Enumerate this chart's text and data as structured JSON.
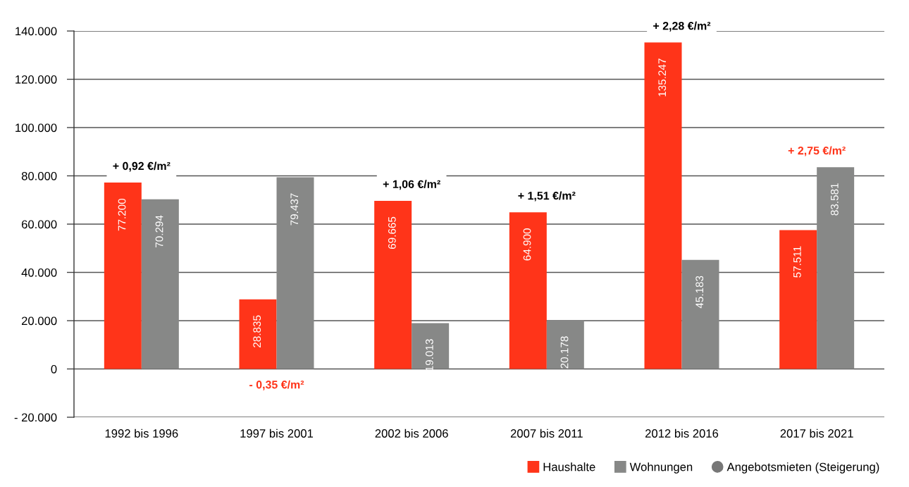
{
  "chart_data": {
    "type": "bar",
    "categories": [
      "1992 bis 1996",
      "1997 bis 2001",
      "2002 bis 2006",
      "2007 bis 2011",
      "2012 bis 2016",
      "2017 bis 2021"
    ],
    "series": [
      {
        "name": "Haushalte",
        "color": "#ff3419",
        "values": [
          77200,
          28835,
          69665,
          64900,
          135247,
          57511
        ],
        "value_labels": [
          "77.200",
          "28.835",
          "69.665",
          "64.900",
          "135.247",
          "57.511"
        ]
      },
      {
        "name": "Wohnungen",
        "color": "#878887",
        "values": [
          70294,
          79437,
          19013,
          20178,
          45183,
          83581
        ],
        "value_labels": [
          "70.294",
          "79.437",
          "19.013",
          "20.178",
          "45.183",
          "83.581"
        ]
      },
      {
        "name": "Angebotsmieten (Steigerung)",
        "type": "scatter",
        "color": "#777777",
        "values": [
          null,
          null,
          null,
          null,
          null,
          null
        ]
      }
    ],
    "marker": "circle",
    "ylim": [
      -20000,
      140000
    ],
    "yticks": [
      {
        "value": -20000,
        "label": "- 20.000"
      },
      0,
      {
        "value": 20000,
        "label": "20.000"
      },
      {
        "value": 40000,
        "label": "40.000"
      },
      {
        "value": 60000,
        "label": "60.000"
      },
      {
        "value": 80000,
        "label": "80.000"
      },
      {
        "value": 100000,
        "label": "100.000"
      },
      {
        "value": 120000,
        "label": "120.000"
      },
      {
        "value": 140000,
        "label": "140.000"
      }
    ],
    "grid": "y",
    "legend": "bottom right",
    "annotations": [
      "+ 0,92 €/m²",
      "- 0,35 €/m²",
      "+ 1,06 €/m²",
      "+ 1,51 €/m²",
      "+ 2,28 €/m²",
      "+ 2,75 €/m²"
    ]
  }
}
